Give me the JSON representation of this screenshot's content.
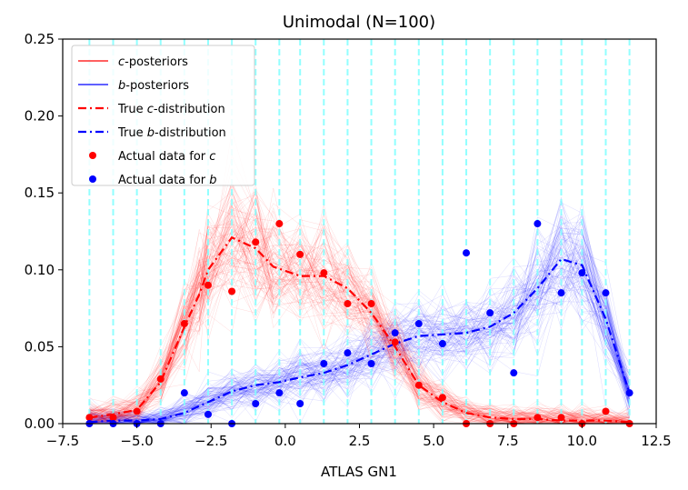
{
  "chart_data": {
    "type": "line",
    "title": "Unimodal (N=100)",
    "xlabel": "ATLAS GN1",
    "ylabel": "",
    "xlim": [
      -7.5,
      12.5
    ],
    "ylim": [
      0,
      0.25
    ],
    "xticks": [
      -7.5,
      -5.0,
      -2.5,
      0.0,
      2.5,
      5.0,
      7.5,
      10.0,
      12.5
    ],
    "xtick_labels": [
      "−7.5",
      "−5.0",
      "−2.5",
      "0.0",
      "2.5",
      "5.0",
      "7.5",
      "10.0",
      "12.5"
    ],
    "yticks": [
      0,
      0.05,
      0.1,
      0.15,
      0.2,
      0.25
    ],
    "ytick_labels": [
      "0.00",
      "0.05",
      "0.10",
      "0.15",
      "0.20",
      "0.25"
    ],
    "legend_position": "top-left",
    "bin_edges": [
      -6.6,
      -5.8,
      -5.0,
      -4.2,
      -3.4,
      -2.6,
      -1.8,
      -1.0,
      -0.2,
      0.5,
      1.3,
      2.1,
      2.9,
      3.7,
      4.5,
      5.3,
      6.1,
      6.9,
      7.7,
      8.5,
      9.3,
      10.0,
      10.8,
      11.6
    ],
    "legend": [
      {
        "prefix": "",
        "italic": "c",
        "suffix": "-posteriors",
        "color": "#ff0000",
        "style": "thin-line"
      },
      {
        "prefix": "",
        "italic": "b",
        "suffix": "-posteriors",
        "color": "#0000ff",
        "style": "thin-line"
      },
      {
        "prefix": "True ",
        "italic": "c",
        "suffix": "-distribution",
        "color": "#ff0000",
        "style": "dashdot"
      },
      {
        "prefix": "True ",
        "italic": "b",
        "suffix": "-distribution",
        "color": "#0000ff",
        "style": "dashdot"
      },
      {
        "prefix": "Actual data for ",
        "italic": "c",
        "suffix": "",
        "color": "#ff0000",
        "style": "marker"
      },
      {
        "prefix": "Actual data for ",
        "italic": "b",
        "suffix": "",
        "color": "#0000ff",
        "style": "marker"
      }
    ],
    "series": [
      {
        "name": "True c-distribution",
        "color": "#ff0000",
        "x": [
          -6.6,
          -5.8,
          -5.0,
          -4.2,
          -3.4,
          -2.9,
          -2.6,
          -1.8,
          -1.0,
          -0.4,
          0.5,
          1.3,
          2.1,
          2.9,
          3.7,
          4.5,
          5.3,
          6.1,
          6.9,
          7.7,
          8.5,
          9.3,
          10.0,
          10.8,
          11.6
        ],
        "values": [
          0.004,
          0.006,
          0.009,
          0.027,
          0.063,
          0.084,
          0.1,
          0.121,
          0.114,
          0.102,
          0.096,
          0.096,
          0.088,
          0.072,
          0.05,
          0.025,
          0.014,
          0.007,
          0.004,
          0.003,
          0.003,
          0.002,
          0.002,
          0.002,
          0.001
        ]
      },
      {
        "name": "True b-distribution",
        "color": "#0000ff",
        "x": [
          -6.6,
          -5.8,
          -5.0,
          -4.2,
          -3.4,
          -2.6,
          -1.8,
          -1.0,
          -0.2,
          0.5,
          1.3,
          2.1,
          2.9,
          3.7,
          4.5,
          5.3,
          6.1,
          6.9,
          7.7,
          8.5,
          9.3,
          10.0,
          10.8,
          11.6
        ],
        "values": [
          0.001,
          0.002,
          0.002,
          0.003,
          0.007,
          0.014,
          0.021,
          0.025,
          0.027,
          0.03,
          0.033,
          0.038,
          0.045,
          0.052,
          0.057,
          0.058,
          0.059,
          0.063,
          0.072,
          0.088,
          0.107,
          0.103,
          0.068,
          0.02
        ]
      },
      {
        "name": "Actual data for c",
        "color": "#ff0000",
        "x": [
          -6.6,
          -5.8,
          -5.0,
          -4.2,
          -3.4,
          -2.6,
          -1.8,
          -1.0,
          -0.2,
          0.5,
          1.3,
          2.1,
          2.9,
          3.7,
          4.5,
          5.3,
          6.1,
          6.9,
          7.7,
          8.5,
          9.3,
          10.0,
          10.8,
          11.6
        ],
        "values": [
          0.004,
          0.004,
          0.008,
          0.029,
          0.065,
          0.09,
          0.086,
          0.118,
          0.13,
          0.11,
          0.098,
          0.078,
          0.078,
          0.053,
          0.025,
          0.017,
          0.0,
          0.0,
          0.0,
          0.004,
          0.004,
          0.0,
          0.008,
          0.0
        ]
      },
      {
        "name": "Actual data for b",
        "color": "#0000ff",
        "x": [
          -6.6,
          -5.8,
          -5.0,
          -4.2,
          -3.4,
          -2.6,
          -1.8,
          -1.0,
          -0.2,
          0.5,
          1.3,
          2.1,
          2.9,
          3.7,
          4.5,
          5.3,
          6.1,
          6.9,
          7.7,
          8.5,
          9.3,
          10.0,
          10.8,
          11.6
        ],
        "values": [
          0.0,
          0.0,
          0.0,
          0.0,
          0.02,
          0.006,
          0.0,
          0.013,
          0.02,
          0.013,
          0.039,
          0.046,
          0.039,
          0.059,
          0.065,
          0.052,
          0.111,
          0.072,
          0.033,
          0.13,
          0.085,
          0.098,
          0.085,
          0.02
        ]
      }
    ]
  }
}
